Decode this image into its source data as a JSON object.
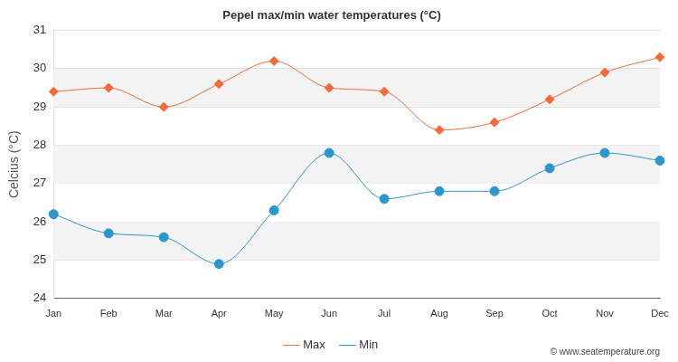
{
  "chart_data": {
    "type": "line",
    "title": "Pepel max/min water temperatures (°C)",
    "y_label": "Celcius (°C)",
    "categories": [
      "Jan",
      "Feb",
      "Mar",
      "Apr",
      "May",
      "Jun",
      "Jul",
      "Aug",
      "Sep",
      "Oct",
      "Nov",
      "Dec"
    ],
    "series": [
      {
        "name": "Max",
        "color": "#f26b3a",
        "marker": "diamond",
        "values": [
          29.4,
          29.5,
          29.0,
          29.6,
          30.2,
          29.5,
          29.4,
          28.4,
          28.6,
          29.2,
          29.9,
          30.3
        ]
      },
      {
        "name": "Min",
        "color": "#2e97c9",
        "marker": "circle",
        "values": [
          26.2,
          25.7,
          25.6,
          24.9,
          26.3,
          27.8,
          26.6,
          26.8,
          26.8,
          27.4,
          27.8,
          27.6
        ]
      }
    ],
    "ylim": [
      24,
      31
    ],
    "yticks": [
      24,
      25,
      26,
      27,
      28,
      29,
      30,
      31
    ],
    "grid": true,
    "legend": "bottom",
    "annotations": [
      "© www.seatemperature.org"
    ]
  }
}
